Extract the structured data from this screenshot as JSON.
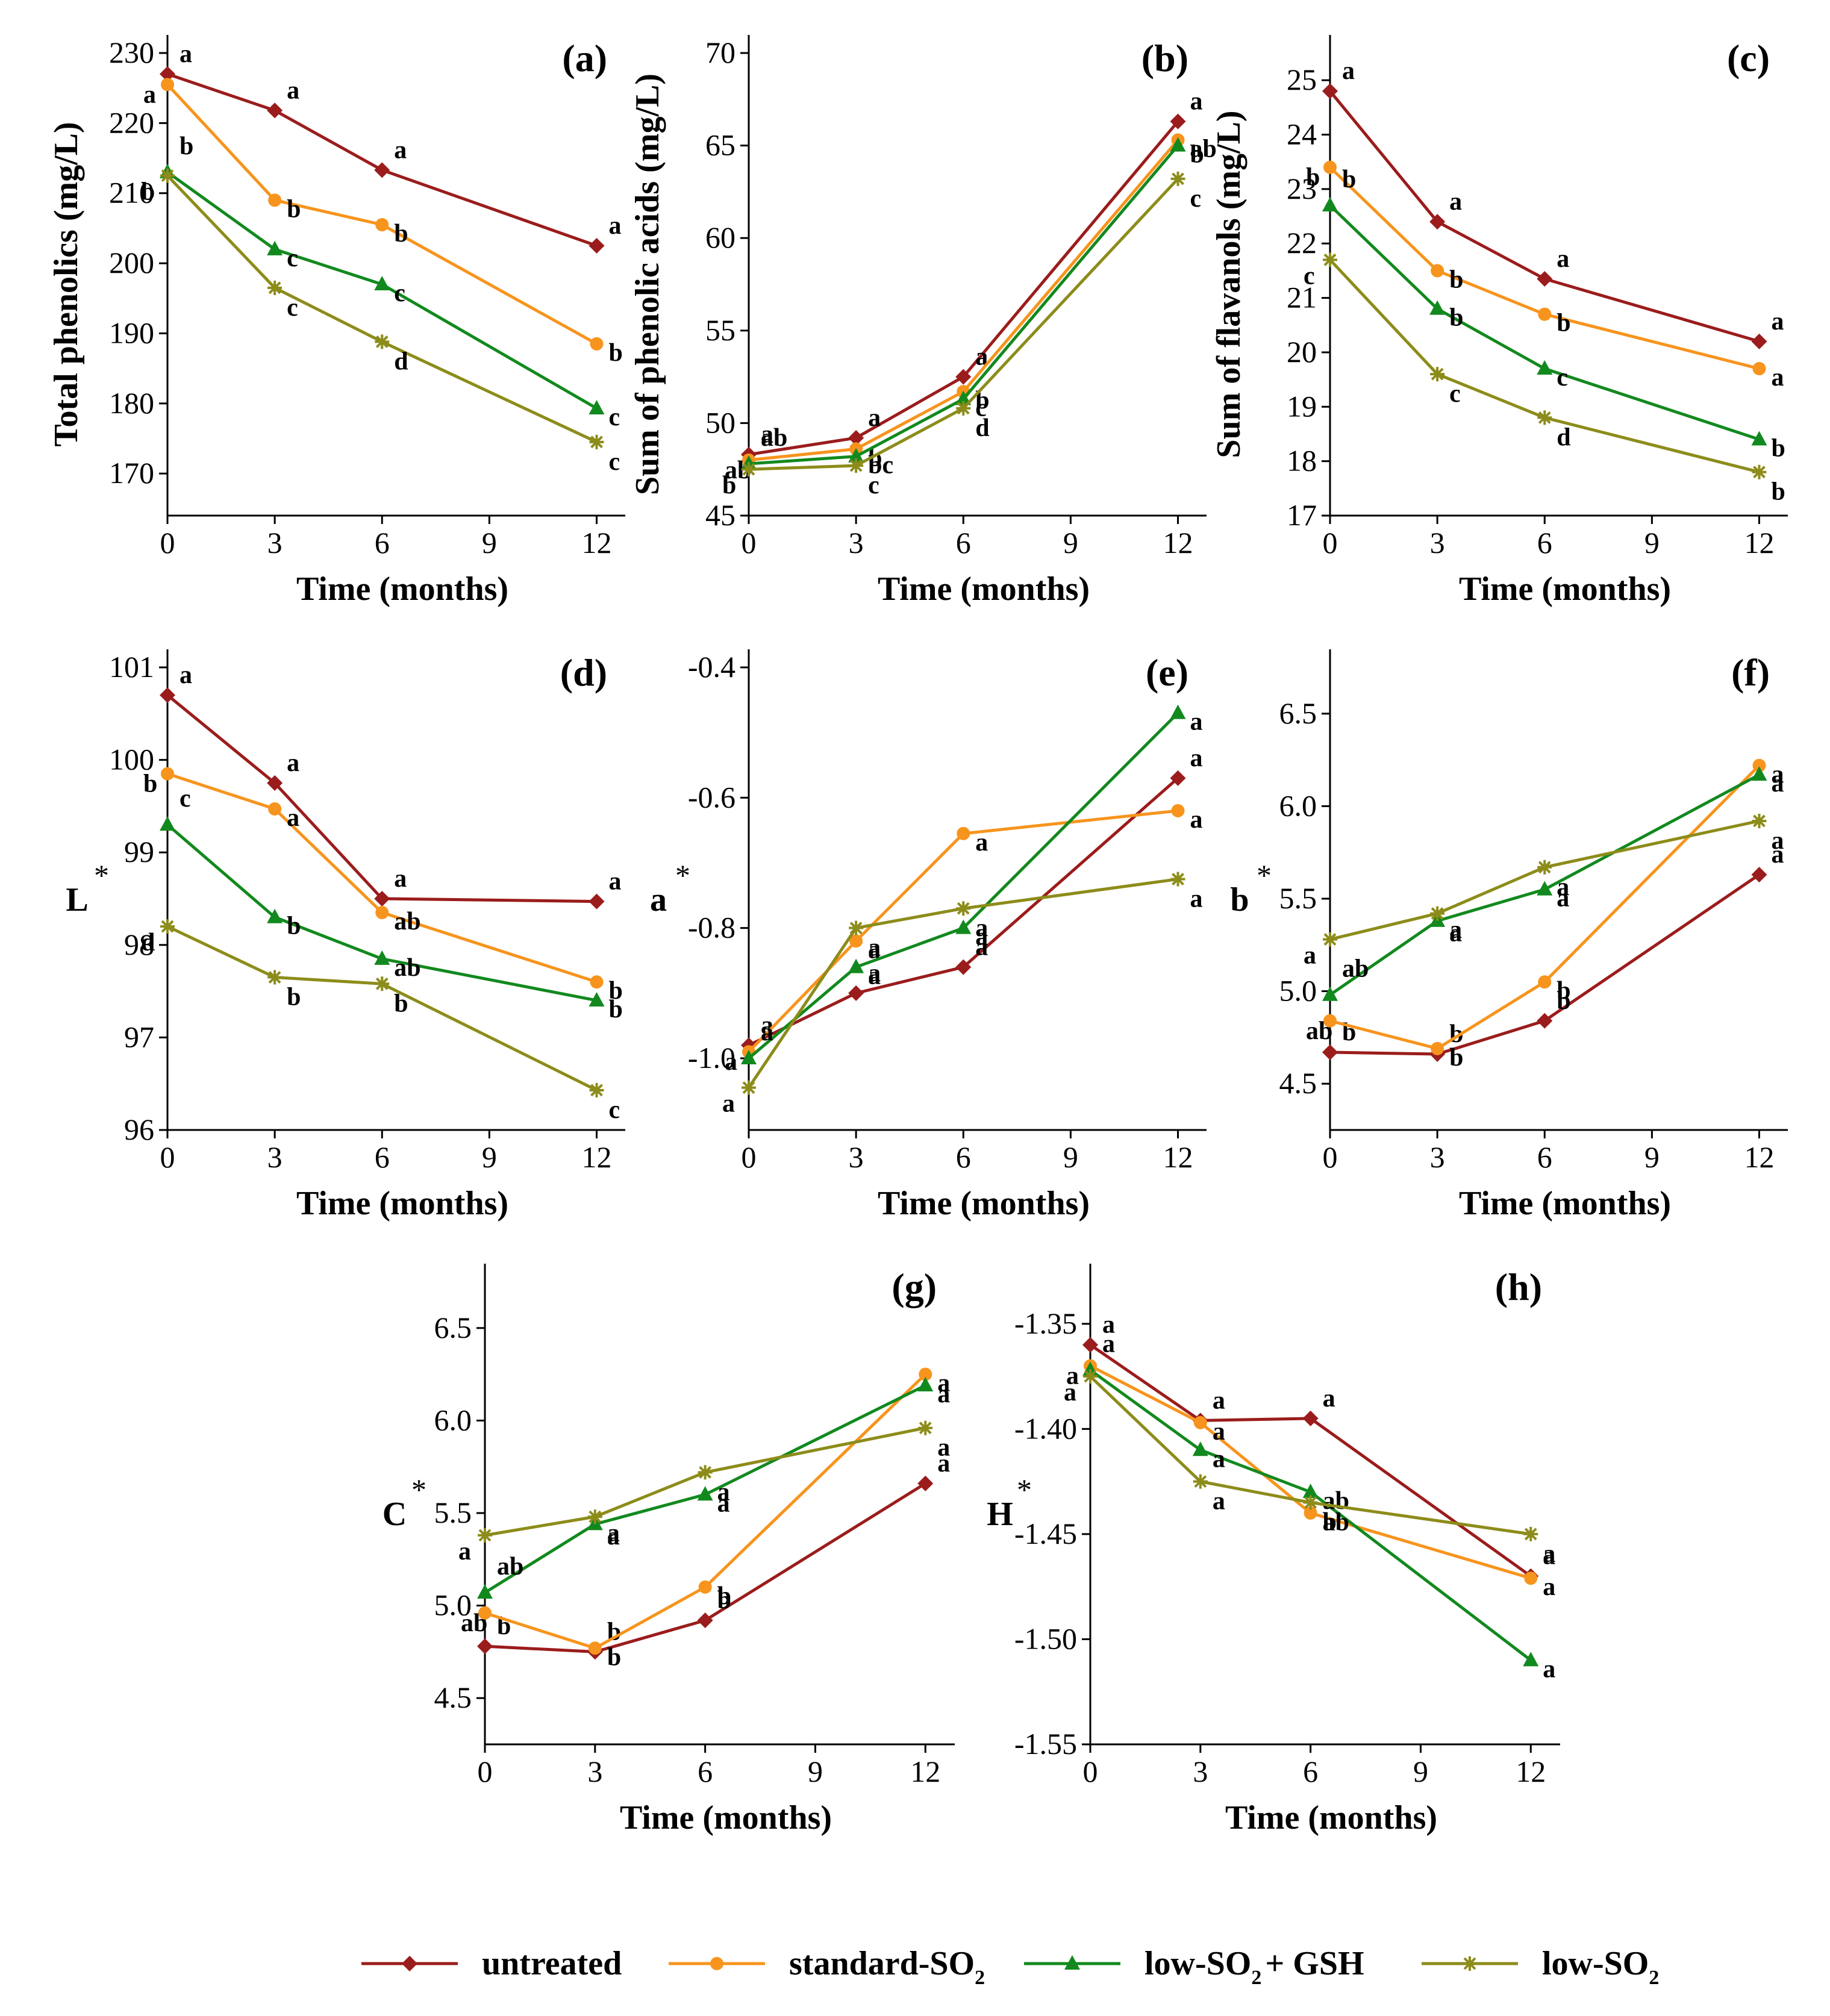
{
  "series_styles": [
    {
      "name": "untreated",
      "color": "#9b1c1c",
      "marker": "diamond"
    },
    {
      "name": "standard-SO2",
      "color": "#f7941d",
      "marker": "circle"
    },
    {
      "name": "low-SO2 + GSH",
      "color": "#12891e",
      "marker": "triangle"
    },
    {
      "name": "low-SO2",
      "color": "#8c8c1a",
      "marker": "star"
    }
  ],
  "legend": {
    "items": [
      {
        "text": "untreated",
        "sub": "",
        "suffix": ""
      },
      {
        "text": "standard-SO",
        "sub": "2",
        "suffix": ""
      },
      {
        "text": "low-SO",
        "sub": "2",
        "suffix": "+ GSH"
      },
      {
        "text": "low-SO",
        "sub": "2",
        "suffix": ""
      }
    ]
  },
  "chart_data": [
    {
      "id": "a",
      "panel_label": "(a)",
      "type": "line",
      "xlabel": "Time (months)",
      "ylabel": "Total phenolics (mg/L)",
      "ylabel_sup": "",
      "x": [
        0,
        3,
        6,
        12
      ],
      "xlim": [
        0,
        12.8
      ],
      "xticks": [
        "0",
        "3",
        "6",
        "9",
        "12"
      ],
      "ylim": [
        164,
        230
      ],
      "yticks": [
        "170",
        "180",
        "190",
        "200",
        "210",
        "220",
        "230"
      ],
      "series": [
        {
          "name": "untreated",
          "values": [
            227,
            221.8,
            213.3,
            202.5
          ],
          "letters": [
            "a",
            "a",
            "a",
            "a"
          ]
        },
        {
          "name": "standard-SO2",
          "values": [
            225.5,
            209,
            205.5,
            188.5
          ],
          "letters": [
            "a",
            "b",
            "b",
            "b"
          ]
        },
        {
          "name": "low-SO2 + GSH",
          "values": [
            213,
            202,
            197,
            179.3
          ],
          "letters": [
            "b",
            "c",
            "c",
            "c"
          ]
        },
        {
          "name": "low-SO2",
          "values": [
            212.5,
            196.5,
            188.8,
            174.5
          ],
          "letters": [
            "b",
            "c",
            "d",
            "c"
          ]
        }
      ]
    },
    {
      "id": "b",
      "panel_label": "(b)",
      "type": "line",
      "xlabel": "Time (months)",
      "ylabel": "Sum of phenolic acids (mg/L)",
      "ylabel_sup": "",
      "x": [
        0,
        3,
        6,
        12
      ],
      "xlim": [
        0,
        12.8
      ],
      "xticks": [
        "0",
        "3",
        "6",
        "9",
        "12"
      ],
      "ylim": [
        45,
        70
      ],
      "yticks": [
        "45",
        "50",
        "55",
        "60",
        "65",
        "70"
      ],
      "series": [
        {
          "name": "untreated",
          "values": [
            48.3,
            49.2,
            52.5,
            66.3
          ],
          "letters": [
            "a",
            "a",
            "a",
            "a"
          ]
        },
        {
          "name": "standard-SO2",
          "values": [
            48,
            48.6,
            51.7,
            65.3
          ],
          "letters": [
            "ab",
            "b",
            "b",
            "ab"
          ]
        },
        {
          "name": "low-SO2 + GSH",
          "values": [
            47.8,
            48.2,
            51.3,
            65
          ],
          "letters": [
            "ab",
            "bc",
            "c",
            "b"
          ]
        },
        {
          "name": "low-SO2",
          "values": [
            47.5,
            47.7,
            50.8,
            63.2
          ],
          "letters": [
            "b",
            "c",
            "d",
            "c"
          ]
        }
      ]
    },
    {
      "id": "c",
      "panel_label": "(c)",
      "type": "line",
      "xlabel": "Time (months)",
      "ylabel": "Sum of flavanols (mg/L)",
      "ylabel_sup": "",
      "x": [
        0,
        3,
        6,
        12
      ],
      "xlim": [
        0,
        12.8
      ],
      "xticks": [
        "0",
        "3",
        "6",
        "9",
        "12"
      ],
      "ylim": [
        17,
        25.5
      ],
      "yticks": [
        "17",
        "18",
        "19",
        "20",
        "21",
        "22",
        "23",
        "24",
        "25"
      ],
      "series": [
        {
          "name": "untreated",
          "values": [
            24.8,
            22.4,
            21.35,
            20.2
          ],
          "letters": [
            "a",
            "a",
            "a",
            "a"
          ]
        },
        {
          "name": "standard-SO2",
          "values": [
            23.4,
            21.5,
            20.7,
            19.7
          ],
          "letters": [
            "b",
            "b",
            "b",
            "a"
          ]
        },
        {
          "name": "low-SO2 + GSH",
          "values": [
            22.7,
            20.8,
            19.7,
            18.4
          ],
          "letters": [
            "b",
            "b",
            "c",
            "b"
          ]
        },
        {
          "name": "low-SO2",
          "values": [
            21.7,
            19.6,
            18.8,
            17.8
          ],
          "letters": [
            "c",
            "c",
            "d",
            "b"
          ]
        }
      ]
    },
    {
      "id": "d",
      "panel_label": "(d)",
      "type": "line",
      "xlabel": "Time (months)",
      "ylabel": "L",
      "ylabel_sup": "*",
      "x": [
        0,
        3,
        6,
        12
      ],
      "xlim": [
        0,
        12.8
      ],
      "xticks": [
        "0",
        "3",
        "6",
        "9",
        "12"
      ],
      "ylim": [
        96,
        101
      ],
      "yticks": [
        "96",
        "97",
        "98",
        "99",
        "100",
        "101"
      ],
      "series": [
        {
          "name": "untreated",
          "values": [
            100.7,
            99.75,
            98.5,
            98.47
          ],
          "letters": [
            "a",
            "a",
            "a",
            "a"
          ]
        },
        {
          "name": "standard-SO2",
          "values": [
            99.85,
            99.47,
            98.35,
            97.6
          ],
          "letters": [
            "b",
            "a",
            "ab",
            "b"
          ]
        },
        {
          "name": "low-SO2 + GSH",
          "values": [
            99.3,
            98.3,
            97.85,
            97.4
          ],
          "letters": [
            "c",
            "b",
            "ab",
            "b"
          ]
        },
        {
          "name": "low-SO2",
          "values": [
            98.2,
            97.65,
            97.58,
            96.43
          ],
          "letters": [
            "d",
            "b",
            "b",
            "c"
          ]
        }
      ]
    },
    {
      "id": "e",
      "panel_label": "(e)",
      "type": "line",
      "xlabel": "Time (months)",
      "ylabel": "a",
      "ylabel_sup": "*",
      "x": [
        0,
        3,
        6,
        12
      ],
      "xlim": [
        0,
        12.8
      ],
      "xticks": [
        "0",
        "3",
        "6",
        "9",
        "12"
      ],
      "ylim": [
        -1.11,
        -0.4
      ],
      "yticks": [
        "-1.0",
        "-0.8",
        "-0.6",
        "-0.4"
      ],
      "ytick_values": [
        -1.0,
        -0.8,
        -0.6,
        -0.4
      ],
      "series": [
        {
          "name": "untreated",
          "values": [
            -0.98,
            -0.9,
            -0.86,
            -0.57
          ],
          "letters": [
            "a",
            "a",
            "a",
            "a"
          ]
        },
        {
          "name": "standard-SO2",
          "values": [
            -0.99,
            -0.82,
            -0.655,
            -0.62
          ],
          "letters": [
            "a",
            "a",
            "a",
            "a"
          ]
        },
        {
          "name": "low-SO2 + GSH",
          "values": [
            -1.0,
            -0.86,
            -0.8,
            -0.47
          ],
          "letters": [
            "a",
            "a",
            "a",
            "a"
          ]
        },
        {
          "name": "low-SO2",
          "values": [
            -1.045,
            -0.8,
            -0.77,
            -0.725
          ],
          "letters": [
            "a",
            "a",
            "a",
            "a"
          ]
        }
      ]
    },
    {
      "id": "f",
      "panel_label": "(f)",
      "type": "line",
      "xlabel": "Time (months)",
      "ylabel": "b",
      "ylabel_sup": "*",
      "x": [
        0,
        3,
        6,
        12
      ],
      "xlim": [
        0,
        12.8
      ],
      "xticks": [
        "0",
        "3",
        "6",
        "9",
        "12"
      ],
      "ylim": [
        4.25,
        6.75
      ],
      "yticks": [
        "4.5",
        "5.0",
        "5.5",
        "6.0",
        "6.5"
      ],
      "ytick_values": [
        4.5,
        5.0,
        5.5,
        6.0,
        6.5
      ],
      "series": [
        {
          "name": "untreated",
          "values": [
            4.67,
            4.66,
            4.84,
            5.63
          ],
          "letters": [
            "b",
            "b",
            "b",
            "a"
          ]
        },
        {
          "name": "standard-SO2",
          "values": [
            4.84,
            4.69,
            5.05,
            6.22
          ],
          "letters": [
            "ab",
            "b",
            "b",
            "a"
          ]
        },
        {
          "name": "low-SO2 + GSH",
          "values": [
            4.98,
            5.38,
            5.55,
            6.17
          ],
          "letters": [
            "ab",
            "a",
            "a",
            "a"
          ]
        },
        {
          "name": "low-SO2",
          "values": [
            5.28,
            5.42,
            5.67,
            5.92
          ],
          "letters": [
            "a",
            "a",
            "a",
            "a"
          ]
        }
      ]
    },
    {
      "id": "g",
      "panel_label": "(g)",
      "type": "line",
      "xlabel": "Time (months)",
      "ylabel": "C",
      "ylabel_sup": "*",
      "x": [
        0,
        3,
        6,
        12
      ],
      "xlim": [
        0,
        12.8
      ],
      "xticks": [
        "0",
        "3",
        "6",
        "9",
        "12"
      ],
      "ylim": [
        4.25,
        6.75
      ],
      "yticks": [
        "4.5",
        "5.0",
        "5.5",
        "6.0",
        "6.5"
      ],
      "ytick_values": [
        4.5,
        5.0,
        5.5,
        6.0,
        6.5
      ],
      "series": [
        {
          "name": "untreated",
          "values": [
            4.78,
            4.75,
            4.92,
            5.66
          ],
          "letters": [
            "b",
            "b",
            "b",
            "a"
          ]
        },
        {
          "name": "standard-SO2",
          "values": [
            4.96,
            4.77,
            5.1,
            6.25
          ],
          "letters": [
            "ab",
            "b",
            "b",
            "a"
          ]
        },
        {
          "name": "low-SO2 + GSH",
          "values": [
            5.07,
            5.44,
            5.6,
            6.19
          ],
          "letters": [
            "ab",
            "a",
            "a",
            "a"
          ]
        },
        {
          "name": "low-SO2",
          "values": [
            5.38,
            5.48,
            5.72,
            5.96
          ],
          "letters": [
            "a",
            "a",
            "a",
            "a"
          ]
        }
      ]
    },
    {
      "id": "h",
      "panel_label": "(h)",
      "type": "line",
      "xlabel": "Time (months)",
      "ylabel": "H",
      "ylabel_sup": "*",
      "x": [
        0,
        3,
        6,
        12
      ],
      "xlim": [
        0,
        12.8
      ],
      "xticks": [
        "0",
        "3",
        "6",
        "9",
        "12"
      ],
      "ylim": [
        -1.55,
        -1.33
      ],
      "yticks": [
        "-1.55",
        "-1.50",
        "-1.45",
        "-1.40",
        "-1.35"
      ],
      "ytick_values": [
        -1.55,
        -1.5,
        -1.45,
        -1.4,
        -1.35
      ],
      "series": [
        {
          "name": "untreated",
          "values": [
            -1.36,
            -1.396,
            -1.395,
            -1.47
          ],
          "letters": [
            "a",
            "a",
            "a",
            "a"
          ]
        },
        {
          "name": "standard-SO2",
          "values": [
            -1.37,
            -1.397,
            -1.44,
            -1.471
          ],
          "letters": [
            "a",
            "a",
            "b",
            "a"
          ]
        },
        {
          "name": "low-SO2 + GSH",
          "values": [
            -1.372,
            -1.41,
            -1.43,
            -1.51
          ],
          "letters": [
            "a",
            "a",
            "ab",
            "a"
          ]
        },
        {
          "name": "low-SO2",
          "values": [
            -1.375,
            -1.425,
            -1.435,
            -1.45
          ],
          "letters": [
            "a",
            "a",
            "ab",
            "a"
          ]
        }
      ]
    }
  ]
}
